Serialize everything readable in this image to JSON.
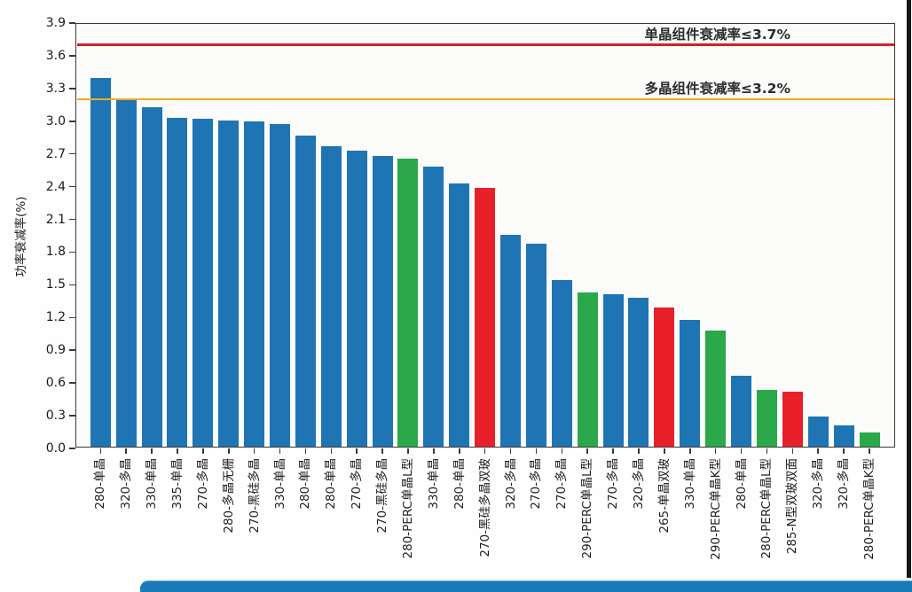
{
  "chart_data": {
    "type": "bar",
    "title": "",
    "xlabel": "",
    "ylabel": "功率衰减率(%)",
    "ylim": [
      0.0,
      3.9
    ],
    "ytick_step": 0.3,
    "grid": false,
    "legend": "none",
    "categories": [
      "280-单晶",
      "320-多晶",
      "330-单晶",
      "335-单晶",
      "270-多晶",
      "280-多晶无栅",
      "270-黑硅多晶",
      "330-单晶",
      "280-单晶",
      "280-单晶",
      "270-多晶",
      "270-黑硅多晶",
      "280-PERC单晶L型",
      "330-单晶",
      "280-单晶",
      "270-黑硅多晶双玻",
      "320-多晶",
      "270-多晶",
      "270-多晶",
      "290-PERC单晶L型",
      "270-多晶",
      "320-多晶",
      "265-单晶双玻",
      "330-单晶",
      "290-PERC单晶K型",
      "280-单晶",
      "280-PERC单晶L型",
      "285-N型双玻双面",
      "320-多晶",
      "320-多晶",
      "280-PERC单晶K型"
    ],
    "values": [
      3.4,
      3.19,
      3.13,
      3.03,
      3.02,
      3.01,
      3.0,
      2.97,
      2.87,
      2.77,
      2.73,
      2.68,
      2.66,
      2.58,
      2.43,
      2.39,
      1.96,
      1.88,
      1.54,
      1.43,
      1.41,
      1.38,
      1.29,
      1.18,
      1.08,
      0.67,
      0.54,
      0.52,
      0.29,
      0.21,
      0.15
    ],
    "bar_color_names": [
      "blue",
      "blue",
      "blue",
      "blue",
      "blue",
      "blue",
      "blue",
      "blue",
      "blue",
      "blue",
      "blue",
      "blue",
      "green",
      "blue",
      "blue",
      "red",
      "blue",
      "blue",
      "blue",
      "green",
      "blue",
      "blue",
      "red",
      "blue",
      "green",
      "blue",
      "green",
      "red",
      "blue",
      "blue",
      "green"
    ],
    "palette": {
      "blue": "#1f74b4",
      "green": "#2aa84a",
      "red": "#e8202a"
    },
    "reference_lines": [
      {
        "label": "单晶组件衰减率≤3.7%",
        "value": 3.7,
        "color": "#d22027"
      },
      {
        "label": "多晶组件衰减率≤3.2%",
        "value": 3.2,
        "color": "#f0ad1d"
      }
    ]
  },
  "footer": {
    "banner_color": "#1a7ab9"
  }
}
